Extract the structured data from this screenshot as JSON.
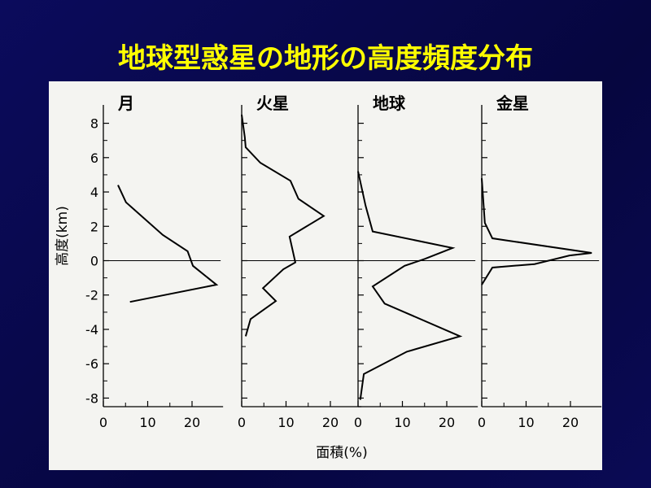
{
  "title": "地球型惑星の地形の高度頻度分布",
  "y_label": "高度(km)",
  "x_label": "面積(%)",
  "chart_data": [
    {
      "type": "line",
      "title": "月",
      "xlim": [
        0,
        27
      ],
      "ylim": [
        -8.5,
        8.5
      ],
      "xticks": [
        0,
        10,
        20
      ],
      "yticks": [
        -8,
        -6,
        -4,
        -2,
        0,
        2,
        4,
        6,
        8
      ],
      "series": [
        {
          "color": "#000000",
          "x": [
            3.3,
            5.1,
            13.4,
            19,
            20.2,
            25.5,
            6
          ],
          "values": [
            4.4,
            3.4,
            1.5,
            0.55,
            -0.3,
            -1.4,
            -2.4
          ]
        }
      ]
    },
    {
      "type": "line",
      "title": "火星",
      "xlim": [
        0,
        27
      ],
      "ylim": [
        -8.5,
        8.5
      ],
      "xticks": [
        0,
        10,
        20
      ],
      "series": [
        {
          "color": "#000000",
          "x": [
            0,
            0.7,
            0.9,
            4.2,
            11,
            12.8,
            18.5,
            14,
            10.8,
            12.1,
            9.4,
            4.8,
            7.7,
            2,
            0.9
          ],
          "values": [
            8.5,
            7.2,
            6.6,
            5.7,
            4.65,
            3.6,
            2.6,
            1.9,
            1.4,
            -0.1,
            -0.5,
            -1.6,
            -2.35,
            -3.4,
            -4.4
          ]
        }
      ]
    },
    {
      "type": "line",
      "title": "地球",
      "xlim": [
        0,
        27
      ],
      "ylim": [
        -8.5,
        8.5
      ],
      "xticks": [
        0,
        10,
        20
      ],
      "series": [
        {
          "color": "#000000",
          "x": [
            0,
            1.7,
            3.3,
            21.3,
            15,
            10.5,
            3.3,
            6,
            23,
            11,
            1.3,
            0.5
          ],
          "values": [
            5.2,
            3.2,
            1.7,
            0.74,
            0.1,
            -0.3,
            -1.5,
            -2.5,
            -4.4,
            -5.3,
            -6.6,
            -8.1
          ]
        }
      ]
    },
    {
      "type": "line",
      "title": "金星",
      "xlim": [
        0,
        27
      ],
      "ylim": [
        -8.5,
        8.5
      ],
      "xticks": [
        0,
        10,
        20
      ],
      "series": [
        {
          "color": "#000000",
          "x": [
            0,
            0.7,
            2.4,
            24.8,
            19.8,
            11.9,
            2.4,
            0
          ],
          "values": [
            4.8,
            2.2,
            1.3,
            0.45,
            0.3,
            -0.2,
            -0.4,
            -1.4
          ]
        }
      ]
    }
  ]
}
